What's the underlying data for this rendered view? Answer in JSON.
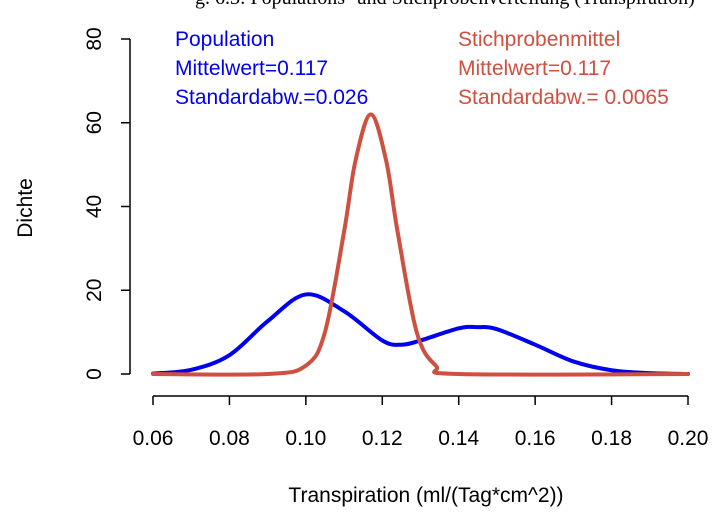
{
  "title_fragment": "g. 6.3: Populations- und Stichprobenverteilung (Transpiration)",
  "colors": {
    "population": "#0000ee",
    "sample_mean": "#cd5040",
    "axis": "#000000"
  },
  "chart_data": {
    "type": "line",
    "xlabel": "Transpiration (ml/(Tag*cm^2))",
    "ylabel": "Dichte",
    "xlim": [
      0.06,
      0.2
    ],
    "ylim": [
      0,
      80
    ],
    "x_ticks": [
      "0.06",
      "0.08",
      "0.10",
      "0.12",
      "0.14",
      "0.16",
      "0.18",
      "0.20"
    ],
    "y_ticks": [
      "0",
      "20",
      "40",
      "60",
      "80"
    ],
    "grid": false,
    "series": [
      {
        "name": "Population",
        "color": "#0000ee",
        "x": [
          0.06,
          0.07,
          0.08,
          0.09,
          0.1,
          0.11,
          0.12,
          0.125,
          0.13,
          0.14,
          0.145,
          0.15,
          0.16,
          0.17,
          0.18,
          0.19,
          0.2
        ],
        "y": [
          0.1,
          1.0,
          4.5,
          12.6,
          19.0,
          15.0,
          8.0,
          7.0,
          8.0,
          10.9,
          11.2,
          10.7,
          7.0,
          3.0,
          0.9,
          0.2,
          0.0
        ]
      },
      {
        "name": "Stichprobenmittel",
        "color": "#cd5040",
        "x": [
          0.06,
          0.09,
          0.1,
          0.105,
          0.11,
          0.113,
          0.117,
          0.121,
          0.124,
          0.129,
          0.134,
          0.14,
          0.2
        ],
        "y": [
          0.0,
          0.0,
          2.0,
          10.0,
          34.0,
          51.0,
          62.0,
          51.0,
          34.0,
          10.0,
          2.0,
          0.0,
          0.0
        ]
      }
    ],
    "annotations": {
      "population": {
        "title": "Population",
        "mean": "Mittelwert=0.117",
        "sd": "Standardabw.=0.026"
      },
      "sample_mean": {
        "title": "Stichprobenmittel",
        "mean": "Mittelwert=0.117",
        "sd": "Standardabw.= 0.0065"
      }
    }
  }
}
